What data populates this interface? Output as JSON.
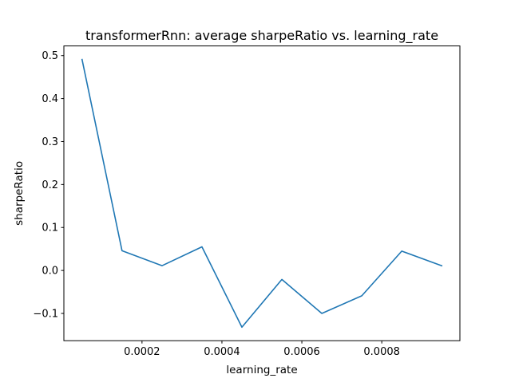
{
  "chart_data": {
    "type": "line",
    "title": "transformerRnn: average sharpeRatio vs. learning_rate",
    "xlabel": "learning_rate",
    "ylabel": "sharpeRatio",
    "xlim": [
      4.5e-06,
      0.0009955
    ],
    "ylim": [
      -0.1635,
      0.5225
    ],
    "grid": false,
    "legend": "none",
    "x_ticks": [
      0.0002,
      0.0004,
      0.0006,
      0.0008
    ],
    "x_tick_labels": [
      "0.0002",
      "0.0004",
      "0.0006",
      "0.0008"
    ],
    "y_ticks": [
      -0.1,
      0.0,
      0.1,
      0.2,
      0.3,
      0.4,
      0.5
    ],
    "y_tick_labels": [
      "−0.1",
      "0.0",
      "0.1",
      "0.2",
      "0.3",
      "0.4",
      "0.5"
    ],
    "series": [
      {
        "name": "sharpeRatio",
        "color": "#1f77b4",
        "x": [
          5e-05,
          0.00015,
          0.00025,
          0.00035,
          0.00045,
          0.00055,
          0.00065,
          0.00075,
          0.00085,
          0.00095
        ],
        "y": [
          0.491,
          0.046,
          0.011,
          0.055,
          -0.132,
          -0.021,
          -0.1,
          -0.059,
          0.045,
          0.011
        ]
      }
    ]
  }
}
